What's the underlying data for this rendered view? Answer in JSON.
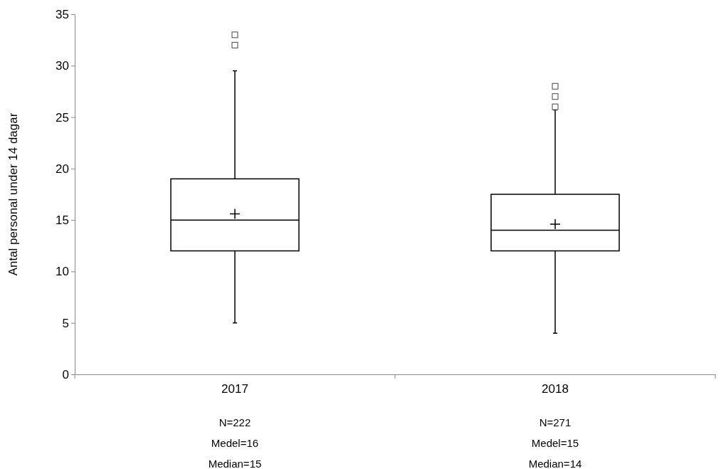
{
  "chart_data": {
    "type": "box",
    "ylabel": "Antal personal under 14 dagar",
    "categories": [
      "2017",
      "2018"
    ],
    "boxes": [
      {
        "low": 5,
        "q1": 12,
        "median": 15,
        "q3": 19,
        "high": 29.5,
        "mean": 15.6,
        "outliers": [
          32,
          33
        ]
      },
      {
        "low": 4,
        "q1": 12,
        "median": 14,
        "q3": 17.5,
        "high": 25.7,
        "mean": 14.6,
        "outliers": [
          26,
          27,
          28
        ]
      }
    ],
    "color": "#000000",
    "ylim": [
      0,
      35
    ],
    "yticks": [
      0,
      5,
      10,
      15,
      20,
      25,
      30,
      35
    ],
    "grid": false,
    "annotations": [
      "N=222",
      "Medel=16",
      "Median=15",
      "N=271",
      "Medel=15",
      "Median=14"
    ]
  }
}
